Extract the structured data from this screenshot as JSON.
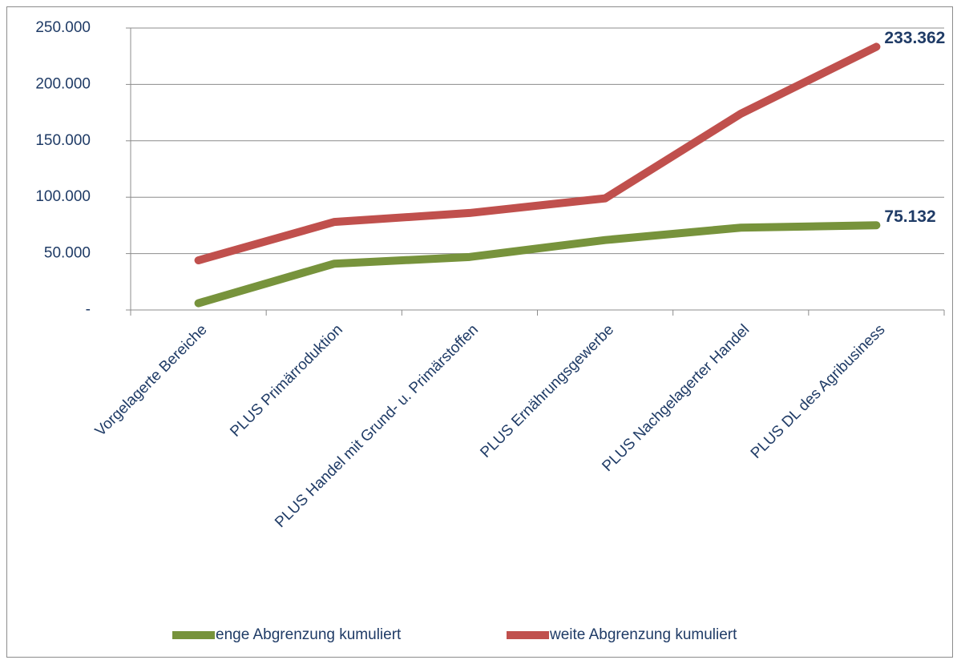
{
  "chart_data": {
    "type": "line",
    "categories": [
      "Vorgelagerte Bereiche",
      "PLUS Primärroduktion",
      "PLUS Handel mit Grund- u. Primärstoffen",
      "PLUS Ernährungsgewerbe",
      "PLUS Nachgelagerter Handel",
      "PLUS DL des Agribusiness"
    ],
    "series": [
      {
        "name": "enge Abgrenzung kumuliert",
        "color": "#77933c",
        "values": [
          6000,
          41000,
          47000,
          62000,
          73000,
          75132
        ],
        "value_labels": [
          null,
          null,
          null,
          null,
          null,
          "75.132"
        ]
      },
      {
        "name": "weite Abgrenzung kumuliert",
        "color": "#c0504d",
        "values": [
          44000,
          78000,
          86000,
          99000,
          174000,
          233362
        ],
        "value_labels": [
          null,
          null,
          null,
          null,
          null,
          "233.362"
        ]
      }
    ],
    "ylim": [
      0,
      250000
    ],
    "yticks": [
      {
        "value": 0,
        "label": "-"
      },
      {
        "value": 50000,
        "label": "50.000"
      },
      {
        "value": 100000,
        "label": "100.000"
      },
      {
        "value": 150000,
        "label": "150.000"
      },
      {
        "value": 200000,
        "label": "200.000"
      },
      {
        "value": 250000,
        "label": "250.000"
      }
    ],
    "grid": true,
    "legend": "bottom"
  }
}
